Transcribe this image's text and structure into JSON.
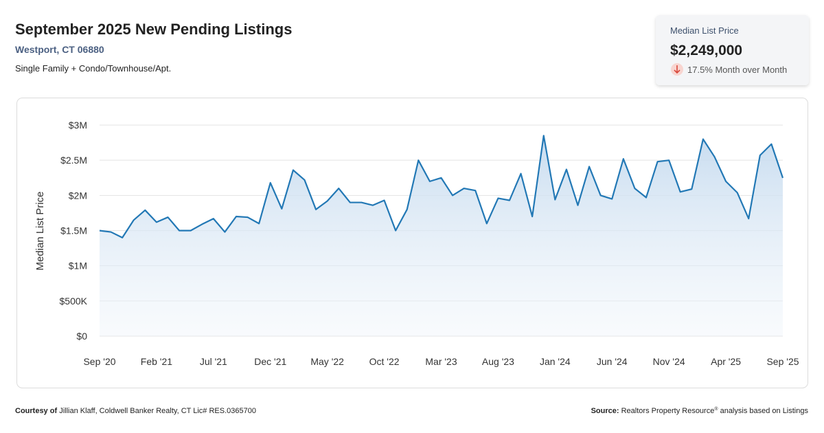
{
  "header": {
    "title": "September 2025 New Pending Listings",
    "location": "Westport, CT 06880",
    "property_types": "Single Family + Condo/Townhouse/Apt."
  },
  "card": {
    "label": "Median List Price",
    "value": "$2,249,000",
    "change": "17.5% Month over Month"
  },
  "chart_data": {
    "type": "line",
    "y_label": "Median List Price",
    "color": "#2278b5",
    "grid": true,
    "categories": [
      "Sep '20",
      null,
      null,
      null,
      null,
      "Feb '21",
      null,
      null,
      null,
      null,
      "Jul '21",
      null,
      null,
      null,
      null,
      "Dec '21",
      null,
      null,
      null,
      null,
      "May '22",
      null,
      null,
      null,
      null,
      "Oct '22",
      null,
      null,
      null,
      null,
      "Mar '23",
      null,
      null,
      null,
      null,
      "Aug '23",
      null,
      null,
      null,
      null,
      "Jan '24",
      null,
      null,
      null,
      null,
      "Jun '24",
      null,
      null,
      null,
      null,
      "Nov '24",
      null,
      null,
      null,
      null,
      "Apr '25",
      null,
      null,
      null,
      null,
      "Sep '25"
    ],
    "values": [
      1500000,
      1480000,
      1400000,
      1650000,
      1790000,
      1620000,
      1690000,
      1500000,
      1500000,
      1590000,
      1670000,
      1480000,
      1700000,
      1690000,
      1600000,
      2180000,
      1810000,
      2360000,
      2220000,
      1800000,
      1920000,
      2100000,
      1900000,
      1900000,
      1860000,
      1930000,
      1500000,
      1800000,
      2500000,
      2200000,
      2250000,
      2000000,
      2100000,
      2070000,
      1600000,
      1960000,
      1930000,
      2310000,
      1700000,
      2850000,
      1940000,
      2370000,
      1860000,
      2410000,
      2000000,
      1950000,
      2520000,
      2100000,
      1970000,
      2480000,
      2500000,
      2050000,
      2090000,
      2800000,
      2550000,
      2200000,
      2040000,
      1670000,
      2570000,
      2730000,
      2249000
    ],
    "ylim": [
      0,
      3000000
    ],
    "yticks": [
      {
        "value": 0,
        "label": "$0"
      },
      {
        "value": 500000,
        "label": "$500K"
      },
      {
        "value": 1000000,
        "label": "$1M"
      },
      {
        "value": 1500000,
        "label": "$1.5M"
      },
      {
        "value": 2000000,
        "label": "$2M"
      },
      {
        "value": 2500000,
        "label": "$2.5M"
      },
      {
        "value": 3000000,
        "label": "$3M"
      }
    ]
  },
  "footer": {
    "courtesy_label": "Courtesy of",
    "courtesy": "Jillian Klaff, Coldwell Banker Realty, CT Lic# RES.0365700",
    "source_label": "Source:",
    "source": "Realtors Property Resource",
    "registered": "®",
    "source_rest": "analysis based on Listings"
  }
}
